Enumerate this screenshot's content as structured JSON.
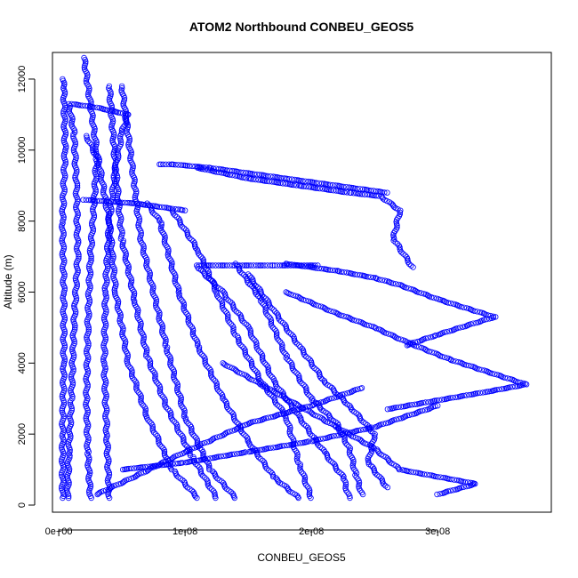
{
  "chart_data": {
    "type": "scatter",
    "title": "ATOM2 Northbound CONBEU_GEOS5",
    "xlabel": "CONBEU_GEOS5",
    "ylabel": "Altitude (m)",
    "xlim": [
      -5e-10,
      3.9e-08
    ],
    "ylim": [
      -200,
      12750
    ],
    "x_ticks": [
      {
        "value": 0,
        "label": "0e+00"
      },
      {
        "value": 1e-08,
        "label": "1e-08"
      },
      {
        "value": 2e-08,
        "label": "2e-08"
      },
      {
        "value": 3e-08,
        "label": "3e-08"
      }
    ],
    "y_ticks": [
      {
        "value": 0,
        "label": "0"
      },
      {
        "value": 2000,
        "label": "2000"
      },
      {
        "value": 4000,
        "label": "4000"
      },
      {
        "value": 6000,
        "label": "6000"
      },
      {
        "value": 8000,
        "label": "8000"
      },
      {
        "value": 10000,
        "label": "10000"
      },
      {
        "value": 12000,
        "label": "12000"
      }
    ],
    "marker": "open-circle",
    "color": "#0000ff",
    "series": [
      {
        "x": [
          3e-10,
          3e-10,
          4e-10,
          4e-10,
          3e-10,
          5e-10,
          4e-10,
          3e-10
        ],
        "y": [
          200,
          2000,
          4000,
          6000,
          8000,
          10000,
          11800,
          12000
        ]
      },
      {
        "x": [
          7e-10,
          8e-10,
          1e-09,
          1.2e-09,
          1.5e-09,
          1.4e-09,
          1.2e-09,
          8e-10
        ],
        "y": [
          200,
          1500,
          3000,
          5000,
          7000,
          9000,
          10500,
          11300
        ]
      },
      {
        "x": [
          2.5e-09,
          2.3e-09,
          2.2e-09,
          2.3e-09,
          2.5e-09,
          2.8e-09,
          3e-09,
          2.2e-09
        ],
        "y": [
          200,
          1500,
          3000,
          5000,
          7000,
          8500,
          9800,
          10400
        ]
      },
      {
        "x": [
          4e-09,
          3.8e-09,
          3.6e-09,
          3.7e-09,
          4e-09,
          4.5e-09,
          5e-09,
          5.5e-09
        ],
        "y": [
          200,
          2000,
          4000,
          6000,
          8000,
          9500,
          10500,
          11000
        ]
      },
      {
        "x": [
          1.1e-08,
          9e-09,
          7e-09,
          5.5e-09,
          4.5e-09,
          4e-09,
          3e-09,
          2e-09
        ],
        "y": [
          200,
          1000,
          2500,
          4000,
          6000,
          8000,
          10000,
          12600
        ]
      },
      {
        "x": [
          1.4e-08,
          1.2e-08,
          1e-08,
          8.5e-09,
          7.5e-09,
          6.5e-09,
          6e-09,
          5e-09
        ],
        "y": [
          200,
          1000,
          2500,
          4500,
          6000,
          7500,
          9000,
          11800
        ]
      },
      {
        "x": [
          1.9e-08,
          1.7e-08,
          1.5e-08,
          1.3e-08,
          1.1e-08,
          9.5e-09,
          8e-09,
          7e-09
        ],
        "y": [
          200,
          800,
          1800,
          3000,
          4500,
          6000,
          8000,
          8500
        ]
      },
      {
        "x": [
          2.3e-08,
          2.25e-08,
          2.1e-08,
          1.9e-08,
          1.7e-08,
          1.5e-08,
          1.3e-08,
          1.1e-08
        ],
        "y": [
          200,
          800,
          1500,
          2500,
          3500,
          5000,
          6000,
          6700
        ]
      },
      {
        "x": [
          2.4e-08,
          2.35e-08,
          2.3e-08,
          2.2e-08,
          2e-08,
          1.8e-08,
          1.6e-08,
          1.4e-08
        ],
        "y": [
          300,
          900,
          1600,
          2300,
          3000,
          4200,
          5800,
          6800
        ]
      },
      {
        "x": [
          2.6e-08,
          2.45e-08,
          2.5e-08,
          2.3e-08,
          2.1e-08,
          1.9e-08,
          1.7e-08,
          1.5e-08
        ],
        "y": [
          500,
          1200,
          2000,
          2800,
          3500,
          4500,
          5500,
          6500
        ]
      },
      {
        "x": [
          2e-08,
          1.9e-08,
          1.8e-08,
          1.6e-08,
          1.4e-08,
          1.25e-08,
          1.1e-08,
          9e-09
        ],
        "y": [
          200,
          1200,
          2500,
          3500,
          4800,
          6000,
          7200,
          8300
        ]
      },
      {
        "x": [
          1.25e-08,
          1.05e-08,
          8.5e-09,
          7e-09,
          6e-09,
          5e-09,
          4.5e-09,
          4e-09
        ],
        "y": [
          200,
          1400,
          2800,
          4200,
          5800,
          7500,
          9500,
          11800
        ]
      },
      {
        "x": [
          3e-08,
          3.3e-08,
          2.7e-08,
          2.5e-08,
          2.2e-08,
          1.9e-08,
          1.6e-08,
          1.3e-08
        ],
        "y": [
          300,
          600,
          1000,
          1600,
          2200,
          2800,
          3400,
          4000
        ]
      },
      {
        "x": [
          2.6e-08,
          3.4e-08,
          3.7e-08,
          3.1e-08,
          2.75e-08,
          2.5e-08,
          2.2e-08,
          1.8e-08
        ],
        "y": [
          2700,
          3200,
          3400,
          4100,
          4600,
          5000,
          5400,
          6000
        ]
      },
      {
        "x": [
          2.75e-08,
          3e-08,
          3.45e-08,
          3e-08,
          2.7e-08,
          2.5e-08,
          2.2e-08,
          1.8e-08
        ],
        "y": [
          4500,
          4800,
          5300,
          5800,
          6200,
          6400,
          6600,
          6800
        ]
      },
      {
        "x": [
          2.8e-08,
          2.65e-08,
          2.7e-08,
          2.55e-08,
          2.3e-08,
          1.9e-08,
          1.5e-08,
          1.1e-08
        ],
        "y": [
          6700,
          7500,
          8300,
          8700,
          8800,
          9000,
          9200,
          9500
        ]
      },
      {
        "x": [
          8e-09,
          9e-09,
          1.2e-08,
          1.8e-08,
          2.6e-08
        ],
        "y": [
          9600,
          9600,
          9500,
          9200,
          8800
        ]
      },
      {
        "x": [
          1.1e-08,
          1.4e-08,
          1.7e-08,
          2.05e-08
        ],
        "y": [
          6750,
          6750,
          6750,
          6750
        ]
      },
      {
        "x": [
          2e-09,
          4e-09,
          6e-09,
          8e-09,
          1e-08
        ],
        "y": [
          8600,
          8550,
          8500,
          8400,
          8300
        ]
      },
      {
        "x": [
          1e-09,
          3e-09,
          5.5e-09
        ],
        "y": [
          11300,
          11200,
          11000
        ]
      },
      {
        "x": [
          5e-09,
          1e-08,
          1.5e-08,
          2e-08,
          2.5e-08,
          3e-08
        ],
        "y": [
          1000,
          1200,
          1500,
          1800,
          2200,
          2800
        ]
      },
      {
        "x": [
          3e-09,
          6e-09,
          1e-08,
          1.5e-08,
          2e-08,
          2.4e-08
        ],
        "y": [
          300,
          800,
          1500,
          2300,
          2800,
          3300
        ]
      }
    ]
  }
}
